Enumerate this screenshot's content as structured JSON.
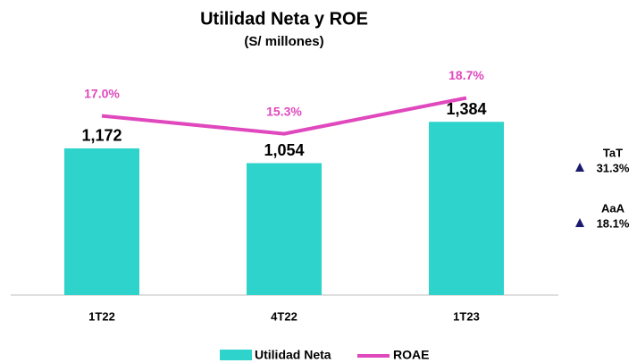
{
  "chart_data": {
    "type": "bar",
    "title": "Utilidad Neta y ROE",
    "subtitle": "(S/ millones)",
    "categories": [
      "1T22",
      "4T22",
      "1T23"
    ],
    "series": [
      {
        "name": "Utilidad Neta",
        "color": "#2ed3cc",
        "values": [
          1172,
          1054,
          1384
        ],
        "value_labels": [
          "1,172",
          "1,054",
          "1,384"
        ]
      },
      {
        "name": "ROAE",
        "color": "#e048bd",
        "type": "line",
        "axis": "y2",
        "values": [
          17.0,
          15.3,
          18.7
        ],
        "value_labels": [
          "17.0%",
          "15.3%",
          "18.7%"
        ]
      }
    ],
    "ylim": [
      0,
      1600
    ],
    "y2lim": [
      0,
      19
    ],
    "grid": false,
    "annotations": [
      {
        "label": "TaT",
        "text": "31.3%"
      },
      {
        "label": "AaA",
        "text": "18.1%"
      }
    ]
  }
}
